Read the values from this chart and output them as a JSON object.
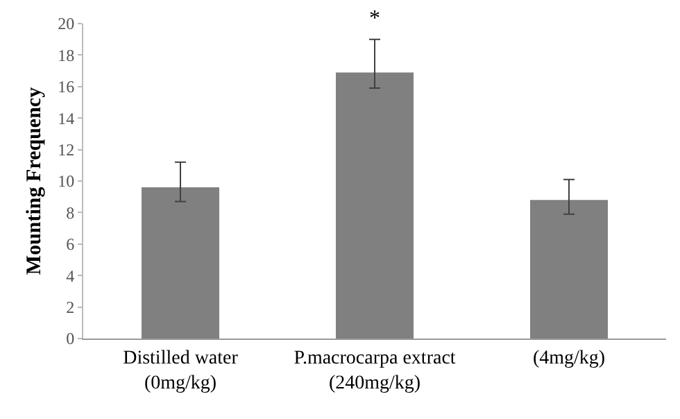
{
  "chart_data": {
    "type": "bar",
    "ylabel": "Mounting Frequency",
    "categories": [
      "Distilled water\n(0mg/kg)",
      "P.macrocarpa extract\n(240mg/kg)",
      "(4mg/kg)"
    ],
    "values": [
      9.6,
      16.9,
      8.8
    ],
    "errors": [
      [
        8.7,
        11.2
      ],
      [
        15.9,
        19.0
      ],
      [
        7.9,
        10.1
      ]
    ],
    "color": "#808080",
    "ylim": [
      0,
      20
    ],
    "yticks": [
      0,
      2,
      4,
      6,
      8,
      10,
      12,
      14,
      16,
      18,
      20
    ],
    "annotations": [
      {
        "text": "*",
        "x": "P.macrocarpa extract\n(240mg/kg)",
        "y": 19.0
      }
    ]
  }
}
